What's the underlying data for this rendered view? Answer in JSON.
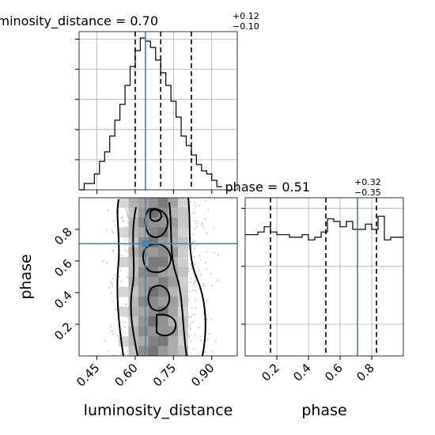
{
  "chart_data": {
    "type": "corner",
    "parameters": [
      "luminosity_distance",
      "phase"
    ],
    "truth": {
      "luminosity_distance": 0.64,
      "phase": 0.71
    },
    "colors": {
      "truth": "#4682b4",
      "hist": "#000000",
      "grid": "#b0b0b0"
    },
    "grid": true,
    "panels": [
      {
        "id": "luminosity_distance_marginal",
        "kind": "hist1d",
        "title_name": "luminosity_distance = ",
        "title_value": "0.70",
        "title_plus": "+0.12",
        "title_minus": "−0.10",
        "quantiles": [
          0.6,
          0.7,
          0.82
        ],
        "xlim": [
          0.38,
          1.0
        ],
        "bin_width": 0.02,
        "values": [
          0,
          2,
          2,
          5,
          9,
          12,
          17,
          22,
          27,
          33,
          39,
          44,
          48,
          47,
          45,
          41,
          37,
          33,
          28,
          23,
          17,
          14,
          11,
          8,
          6,
          5,
          3,
          1
        ],
        "x_ticks": [
          0.45,
          0.6,
          0.75,
          0.9
        ],
        "ytick_count": 5
      },
      {
        "id": "phase_marginal",
        "kind": "hist1d",
        "title_name": "phase = ",
        "title_value": "0.51",
        "title_plus": "+0.32",
        "title_minus": "−0.35",
        "quantiles": [
          0.16,
          0.51,
          0.83
        ],
        "xlim": [
          0.0,
          1.0
        ],
        "bin_width": 0.04,
        "values": [
          46,
          46,
          47,
          49,
          47,
          46,
          46,
          45,
          45,
          46,
          44,
          45,
          47,
          52,
          51,
          49,
          51,
          48,
          48,
          50,
          48,
          53,
          44,
          45,
          45
        ],
        "x_ticks": [
          "0.2",
          "0.4",
          "0.6",
          "0.8"
        ],
        "x_tick_values": [
          0.2,
          0.4,
          0.6,
          0.8
        ],
        "ylim": [
          0,
          60
        ],
        "y_tick_values": [
          12,
          34,
          56
        ]
      },
      {
        "id": "joint_2d",
        "kind": "hist2d",
        "xlim": [
          0.38,
          1.0
        ],
        "ylim": [
          0.0,
          1.0
        ],
        "x_ticks": [
          "0.45",
          "0.60",
          "0.75",
          "0.90"
        ],
        "x_tick_values": [
          0.45,
          0.6,
          0.75,
          0.9
        ],
        "y_ticks": [
          "0.2",
          "0.4",
          "0.6",
          "0.8"
        ],
        "y_tick_values": [
          0.2,
          0.4,
          0.6,
          0.8
        ],
        "xlabel": "luminosity_distance",
        "ylabel": "phase"
      }
    ],
    "phase_xlabel": "phase"
  }
}
